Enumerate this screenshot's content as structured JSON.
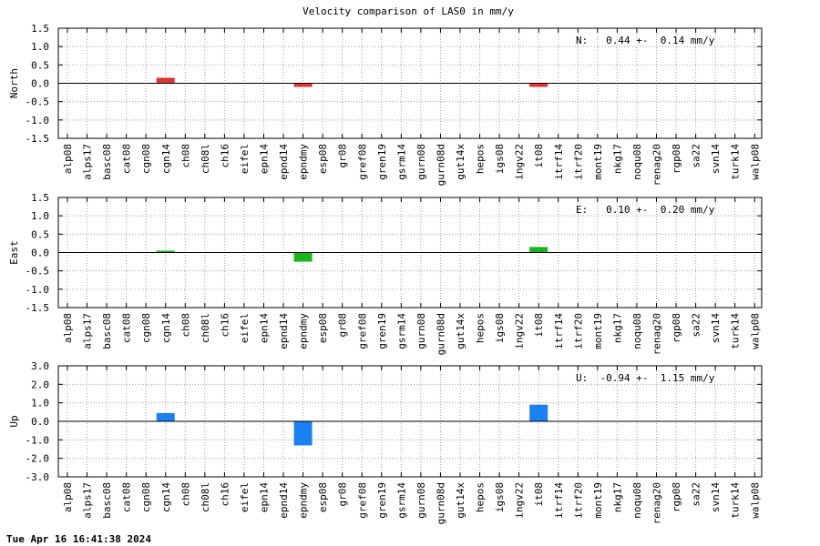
{
  "title": "Velocity comparison of LAS0 in mm/y",
  "timestamp": "Tue Apr 16 16:41:38 2024",
  "chart_data": {
    "type": "bar",
    "title": "Velocity comparison of LAS0 in mm/y",
    "categories": [
      "alp08",
      "alps17",
      "basc08",
      "cat08",
      "cgn08",
      "cgn14",
      "ch08",
      "ch08l",
      "ch16",
      "eifel",
      "epn14",
      "epnd14",
      "epndmy",
      "esp08",
      "gr08",
      "gref08",
      "gren19",
      "gsrm14",
      "gurn08",
      "gurn08d",
      "gut14x",
      "hepos",
      "igs08",
      "ingv22",
      "it08",
      "itrf14",
      "itrf20",
      "mont19",
      "nkg17",
      "noqu08",
      "renag20",
      "rgp08",
      "sa22",
      "svn14",
      "turk14",
      "walp08"
    ],
    "grid": true,
    "panels": [
      {
        "ylabel": "North",
        "ylim": [
          -1.5,
          1.5
        ],
        "yticks": [
          "1.5",
          "1.0",
          "0.5",
          "0.0",
          "-0.5",
          "-1.0",
          "-1.5"
        ],
        "ytick_values": [
          1.5,
          1.0,
          0.5,
          0.0,
          -0.5,
          -1.0,
          -1.5
        ],
        "annotation": "N:   0.44 +-  0.14 mm/y",
        "color": "#e03535",
        "series": [
          {
            "values": [
              null,
              null,
              null,
              null,
              null,
              0.15,
              null,
              null,
              null,
              null,
              null,
              null,
              -0.1,
              null,
              null,
              null,
              null,
              null,
              null,
              null,
              null,
              null,
              null,
              null,
              -0.1,
              null,
              null,
              null,
              null,
              null,
              null,
              null,
              null,
              null,
              null,
              null
            ]
          }
        ]
      },
      {
        "ylabel": "East",
        "ylim": [
          -1.5,
          1.5
        ],
        "yticks": [
          "1.5",
          "1.0",
          "0.5",
          "0.0",
          "-0.5",
          "-1.0",
          "-1.5"
        ],
        "ytick_values": [
          1.5,
          1.0,
          0.5,
          0.0,
          -0.5,
          -1.0,
          -1.5
        ],
        "annotation": "E:   0.10 +-  0.20 mm/y",
        "color": "#1ab51a",
        "series": [
          {
            "values": [
              null,
              null,
              null,
              null,
              null,
              0.05,
              null,
              null,
              null,
              null,
              null,
              null,
              -0.25,
              null,
              null,
              null,
              null,
              null,
              null,
              null,
              null,
              null,
              null,
              null,
              0.15,
              null,
              null,
              null,
              null,
              null,
              null,
              null,
              null,
              null,
              null,
              null
            ]
          }
        ]
      },
      {
        "ylabel": "Up",
        "ylim": [
          -3.0,
          3.0
        ],
        "yticks": [
          "3.0",
          "2.0",
          "1.0",
          "0.0",
          "-1.0",
          "-2.0",
          "-3.0"
        ],
        "ytick_values": [
          3.0,
          2.0,
          1.0,
          0.0,
          -1.0,
          -2.0,
          -3.0
        ],
        "annotation": "U:  -0.94 +-  1.15 mm/y",
        "color": "#1a82f0",
        "series": [
          {
            "values": [
              null,
              null,
              null,
              null,
              null,
              0.45,
              null,
              null,
              null,
              null,
              null,
              null,
              -1.3,
              null,
              null,
              null,
              null,
              null,
              null,
              null,
              null,
              null,
              null,
              null,
              0.9,
              null,
              null,
              null,
              null,
              null,
              null,
              null,
              null,
              null,
              null,
              null
            ]
          }
        ]
      }
    ]
  }
}
